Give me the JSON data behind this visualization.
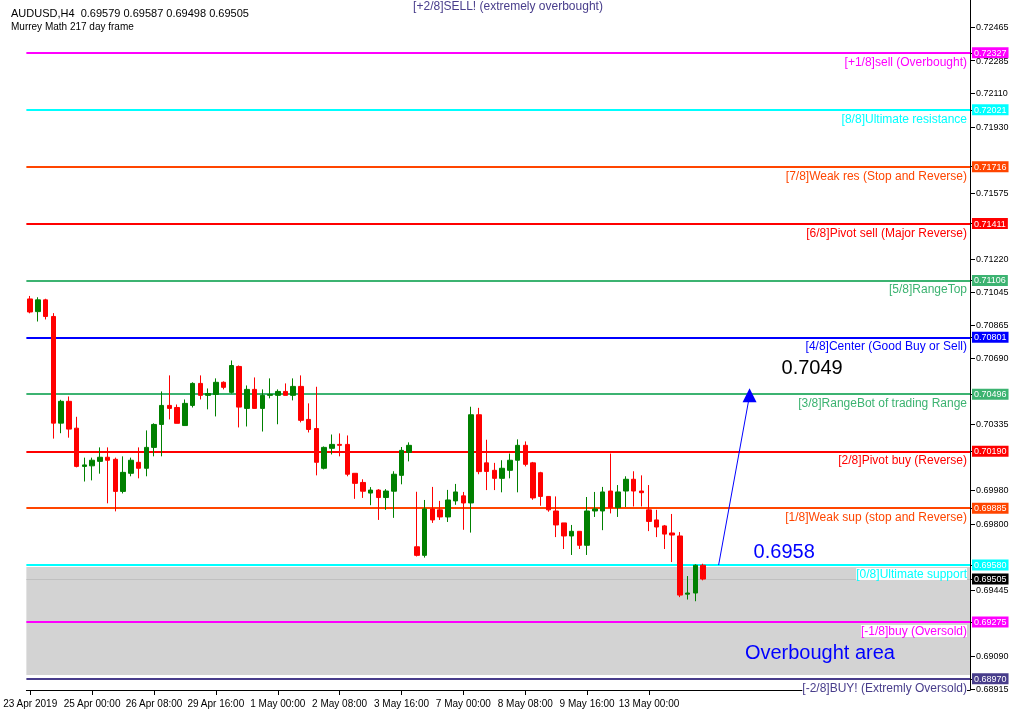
{
  "chart_data": {
    "type": "candlestick",
    "title": "AUDUSD,H4  0.69579 0.69587 0.69498 0.69505",
    "subtitle": "Murrey Math 217 day frame",
    "categories": [
      "23 Apr 2019",
      null,
      null,
      null,
      null,
      null,
      null,
      null,
      "25 Apr 00:00",
      null,
      null,
      null,
      null,
      null,
      null,
      null,
      "26 Apr 08:00",
      null,
      null,
      null,
      null,
      null,
      null,
      null,
      "29 Apr 16:00",
      null,
      null,
      null,
      null,
      null,
      null,
      null,
      "1 May 00:00",
      null,
      null,
      null,
      null,
      null,
      null,
      null,
      "2 May 08:00",
      null,
      null,
      null,
      null,
      null,
      null,
      null,
      "3 May 16:00",
      null,
      null,
      null,
      null,
      null,
      null,
      null,
      "7 May 00:00",
      null,
      null,
      null,
      null,
      null,
      null,
      null,
      "8 May 08:00",
      null,
      null,
      null,
      null,
      null,
      null,
      null,
      "9 May 16:00",
      null,
      null,
      null,
      null,
      null,
      null,
      null,
      "13 May 00:00",
      null,
      null,
      null,
      null,
      null,
      null,
      null,
      null,
      null,
      null,
      null,
      null,
      null,
      null,
      null,
      null,
      null,
      null,
      null,
      null,
      null,
      null,
      null,
      null,
      null,
      null,
      null,
      null,
      null,
      null,
      null,
      null,
      null,
      null,
      null,
      null,
      null,
      null,
      null,
      null,
      null
    ],
    "colors": [
      "#ff0000",
      "#008000",
      "#ff0000",
      "#ff0000",
      "#008000",
      "#ff0000",
      "#ff0000",
      "#008000",
      "#008000",
      "#008000",
      "#ff0000",
      "#ff0000",
      "#008000",
      "#008000",
      "#ff0000",
      "#008000",
      "#008000",
      "#008000",
      "#ff0000",
      "#ff0000",
      "#008000",
      "#008000",
      "#ff0000",
      "#008000",
      "#008000",
      "#ff0000",
      "#008000",
      "#ff0000",
      "#008000",
      "#ff0000",
      "#008000",
      "#008000",
      "#008000",
      "#ff0000",
      "#008000",
      "#ff0000",
      "#ff0000",
      "#ff0000",
      "#008000",
      "#008000",
      "#ff0000",
      "#ff0000",
      "#ff0000",
      "#ff0000",
      "#008000",
      "#ff0000",
      "#008000",
      "#008000",
      "#008000",
      "#008000",
      "#ff0000",
      "#008000",
      "#ff0000",
      "#ff0000",
      "#008000",
      "#008000",
      "#ff0000",
      "#008000",
      "#ff0000",
      "#ff0000",
      "#ff0000",
      "#008000",
      "#008000",
      "#008000",
      "#ff0000",
      "#ff0000",
      "#ff0000",
      "#ff0000",
      "#ff0000",
      "#ff0000",
      "#008000",
      "#ff0000",
      "#008000",
      "#008000",
      "#008000",
      "#ff0000",
      "#008000",
      "#008000",
      "#ff0000",
      "#ff0000",
      "#ff0000",
      "#ff0000",
      "#ff0000",
      "#ff0000",
      "#ff0000",
      "#008000",
      "#008000",
      "#ff0000",
      null,
      null,
      null,
      null,
      null,
      null,
      null,
      null,
      null,
      null,
      null,
      null,
      null,
      null,
      null,
      null,
      null,
      null,
      null,
      null,
      null,
      null,
      null,
      null,
      null,
      null,
      null,
      null,
      null,
      null,
      null,
      null,
      null,
      null
    ],
    "ohlc": [
      [
        0.71007,
        0.71023,
        0.7093,
        0.70937
      ],
      [
        0.70939,
        0.71016,
        0.70886,
        0.71002
      ],
      [
        0.71002,
        0.71008,
        0.70897,
        0.70913
      ],
      [
        0.70913,
        0.70931,
        0.70258,
        0.70341
      ],
      [
        0.70341,
        0.70466,
        0.70287,
        0.70458
      ],
      [
        0.70458,
        0.70484,
        0.70263,
        0.70309
      ],
      [
        0.70314,
        0.70375,
        0.70104,
        0.70109
      ],
      [
        0.70109,
        0.70156,
        0.70028,
        0.70117
      ],
      [
        0.70112,
        0.70156,
        0.70034,
        0.70142
      ],
      [
        0.70136,
        0.70211,
        0.7007,
        0.70158
      ],
      [
        0.70158,
        0.70211,
        0.69911,
        0.70142
      ],
      [
        0.70147,
        0.70156,
        0.69868,
        0.69975
      ],
      [
        0.69975,
        0.70163,
        0.69964,
        0.70077
      ],
      [
        0.70072,
        0.70156,
        0.70056,
        0.70142
      ],
      [
        0.70131,
        0.70211,
        0.70045,
        0.70099
      ],
      [
        0.70099,
        0.70302,
        0.70056,
        0.70211
      ],
      [
        0.70211,
        0.7034,
        0.70163,
        0.70334
      ],
      [
        0.70334,
        0.70511,
        0.70163,
        0.70436
      ],
      [
        0.70436,
        0.70597,
        0.70361,
        0.7042
      ],
      [
        0.70425,
        0.70441,
        0.7034,
        0.7034
      ],
      [
        0.70328,
        0.70468,
        0.70328,
        0.70447
      ],
      [
        0.70436,
        0.7056,
        0.70425,
        0.70554
      ],
      [
        0.70554,
        0.70597,
        0.70468,
        0.7049
      ],
      [
        0.7049,
        0.70527,
        0.70415,
        0.705
      ],
      [
        0.70495,
        0.70581,
        0.70377,
        0.7056
      ],
      [
        0.7056,
        0.70565,
        0.70522,
        0.70533
      ],
      [
        0.70506,
        0.70677,
        0.705,
        0.7065
      ],
      [
        0.70645,
        0.7065,
        0.70318,
        0.70427
      ],
      [
        0.7042,
        0.70543,
        0.70323,
        0.70522
      ],
      [
        0.70522,
        0.70586,
        0.7042,
        0.7042
      ],
      [
        0.7042,
        0.70522,
        0.70296,
        0.7049
      ],
      [
        0.7049,
        0.70581,
        0.70474,
        0.70495
      ],
      [
        0.7049,
        0.70522,
        0.70335,
        0.70511
      ],
      [
        0.70511,
        0.70554,
        0.7049,
        0.7049
      ],
      [
        0.7049,
        0.70581,
        0.70463,
        0.70538
      ],
      [
        0.70538,
        0.70597,
        0.70345,
        0.70356
      ],
      [
        0.70361,
        0.70447,
        0.70291,
        0.70307
      ],
      [
        0.70312,
        0.70536,
        0.70061,
        0.70131
      ],
      [
        0.70099,
        0.70216,
        0.70093,
        0.70211
      ],
      [
        0.70206,
        0.7028,
        0.70173,
        0.70227
      ],
      [
        0.70227,
        0.70286,
        0.70163,
        0.70222
      ],
      [
        0.70227,
        0.70275,
        0.70056,
        0.70067
      ],
      [
        0.70072,
        0.70072,
        0.69935,
        0.70018
      ],
      [
        0.70023,
        0.7004,
        0.6994,
        0.69976
      ],
      [
        0.69966,
        0.69998,
        0.69901,
        0.69982
      ],
      [
        0.69982,
        0.69987,
        0.69822,
        0.69942
      ],
      [
        0.69942,
        0.69987,
        0.69876,
        0.69977
      ],
      [
        0.69976,
        0.70083,
        0.69833,
        0.70067
      ],
      [
        0.70061,
        0.70213,
        0.70013,
        0.70195
      ],
      [
        0.70184,
        0.70238,
        0.70136,
        0.70222
      ],
      [
        0.69678,
        0.69973,
        0.69626,
        0.69632
      ],
      [
        0.69632,
        0.69929,
        0.6962,
        0.69881
      ],
      [
        0.69881,
        0.69999,
        0.69806,
        0.69822
      ],
      [
        0.69876,
        0.69924,
        0.69822,
        0.69838
      ],
      [
        0.69838,
        0.69983,
        0.69811,
        0.69929
      ],
      [
        0.69924,
        0.70015,
        0.69903,
        0.69972
      ],
      [
        0.69951,
        0.69972,
        0.69769,
        0.69913
      ],
      [
        0.69913,
        0.70429,
        0.69754,
        0.70386
      ],
      [
        0.70386,
        0.70423,
        0.70067,
        0.70081
      ],
      [
        0.70128,
        0.70252,
        0.69982,
        0.70082
      ],
      [
        0.70088,
        0.70128,
        0.69982,
        0.70045
      ],
      [
        0.70045,
        0.70142,
        0.6997,
        0.70099
      ],
      [
        0.70088,
        0.70178,
        0.70045,
        0.70142
      ],
      [
        0.70142,
        0.70254,
        0.6997,
        0.70222
      ],
      [
        0.70222,
        0.70243,
        0.70109,
        0.7012
      ],
      [
        0.70128,
        0.70133,
        0.6993,
        0.6994
      ],
      [
        0.70075,
        0.7008,
        0.69898,
        0.69948
      ],
      [
        0.69948,
        0.6995,
        0.69866,
        0.69876
      ],
      [
        0.6987,
        0.69948,
        0.6973,
        0.69795
      ],
      [
        0.69806,
        0.69806,
        0.69666,
        0.69736
      ],
      [
        0.69736,
        0.69795,
        0.69634,
        0.69761
      ],
      [
        0.69761,
        0.69761,
        0.69666,
        0.69686
      ],
      [
        0.69686,
        0.69945,
        0.69634,
        0.6987
      ],
      [
        0.6987,
        0.69972,
        0.69838,
        0.69881
      ],
      [
        0.6987,
        0.69999,
        0.69767,
        0.69972
      ],
      [
        0.69977,
        0.70178,
        0.69857,
        0.69888
      ],
      [
        0.69888,
        0.70009,
        0.69838,
        0.69972
      ],
      [
        0.69977,
        0.70056,
        0.69891,
        0.7004
      ],
      [
        0.7004,
        0.70083,
        0.69894,
        0.69977
      ],
      [
        0.69977,
        0.70061,
        0.69894,
        0.69968
      ],
      [
        0.69876,
        0.70009,
        0.69762,
        0.69814
      ],
      [
        0.69822,
        0.69876,
        0.6973,
        0.69784
      ],
      [
        0.6979,
        0.69795,
        0.69666,
        0.69746
      ],
      [
        0.69752,
        0.69854,
        0.69596,
        0.69741
      ],
      [
        0.69736,
        0.69757,
        0.69408,
        0.69419
      ],
      [
        0.69424,
        0.69521,
        0.69395,
        0.6943
      ],
      [
        0.6943,
        0.69584,
        0.69386,
        0.69579
      ],
      [
        0.69579,
        0.69587,
        0.69498,
        0.69505
      ],
      null,
      null,
      null,
      null,
      null,
      null,
      null,
      null,
      null,
      null,
      null,
      null,
      null,
      null,
      null,
      null,
      null,
      null,
      null,
      null,
      null,
      null,
      null,
      null,
      null,
      null,
      null,
      null,
      null,
      null,
      null,
      null,
      null,
      null
    ],
    "series": [
      {
        "type": "line",
        "color": "#0000ff",
        "values": [
          null,
          null,
          null,
          null,
          null,
          null,
          null,
          null,
          null,
          null,
          null,
          null,
          null,
          null,
          null,
          null,
          null,
          null,
          null,
          null,
          null,
          null,
          null,
          null,
          null,
          null,
          null,
          null,
          null,
          null,
          null,
          null,
          null,
          null,
          null,
          null,
          null,
          null,
          null,
          null,
          null,
          null,
          null,
          null,
          null,
          null,
          null,
          null,
          null,
          null,
          null,
          null,
          null,
          null,
          null,
          null,
          null,
          null,
          null,
          null,
          null,
          null,
          null,
          null,
          null,
          null,
          null,
          null,
          null,
          null,
          null,
          null,
          null,
          null,
          null,
          null,
          null,
          null,
          null,
          null,
          null,
          null,
          null,
          null,
          null,
          null,
          null,
          null,
          null,
          0.6958,
          null,
          null,
          null,
          0.7049,
          null,
          null,
          null,
          null,
          null,
          null,
          null,
          null,
          null,
          null,
          null,
          null,
          null,
          null,
          null,
          null,
          null,
          null,
          null,
          null,
          null,
          null,
          null,
          null,
          null,
          null,
          null,
          null
        ],
        "value_labels": [
          null,
          null,
          null,
          null,
          null,
          null,
          null,
          null,
          null,
          null,
          null,
          null,
          null,
          null,
          null,
          null,
          null,
          null,
          null,
          null,
          null,
          null,
          null,
          null,
          null,
          null,
          null,
          null,
          null,
          null,
          null,
          null,
          null,
          null,
          null,
          null,
          null,
          null,
          null,
          null,
          null,
          null,
          null,
          null,
          null,
          null,
          null,
          null,
          null,
          null,
          null,
          null,
          null,
          null,
          null,
          null,
          null,
          null,
          null,
          null,
          null,
          null,
          null,
          null,
          null,
          null,
          null,
          null,
          null,
          null,
          null,
          null,
          null,
          null,
          null,
          null,
          null,
          null,
          null,
          null,
          null,
          null,
          null,
          null,
          null,
          null,
          null,
          null,
          null,
          "0.6958",
          null,
          null,
          null,
          "0.7049",
          null,
          null,
          null,
          null,
          null,
          null,
          null,
          null,
          null,
          null,
          null,
          null,
          null,
          null,
          null,
          null,
          null,
          null,
          null,
          null,
          null,
          null,
          null,
          null,
          null,
          null,
          null,
          null
        ]
      }
    ],
    "ylim": [
      0.6891,
      0.7261
    ],
    "yticks": [
      0.72465,
      0.72327,
      0.72285,
      0.72021,
      0.71716,
      0.71411,
      0.71106,
      0.70801,
      0.70496,
      {
        "value": 0.7019,
        "label": "0.70190"
      },
      0.69885,
      {
        "value": 0.6958,
        "label": "0.69580"
      },
      0.69505,
      0.69275,
      {
        "value": 0.6897,
        "label": "0.68970"
      },
      {
        "value": 0.7211,
        "label": "0.72110"
      },
      {
        "value": 0.7193,
        "label": "0.71930"
      },
      0.71575,
      {
        "value": 0.7122,
        "label": "0.71220"
      },
      0.71045,
      0.70865,
      {
        "value": 0.7069,
        "label": "0.70690"
      },
      0.70335,
      {
        "value": 0.6998,
        "label": "0.69980"
      },
      {
        "value": 0.698,
        "label": "0.69800"
      },
      0.69445,
      {
        "value": 0.6909,
        "label": "0.69090"
      },
      0.68915
    ],
    "ref_lines": [
      {
        "axis": "y",
        "value": 0.72327,
        "label": "[+1/8]sell (Overbought)",
        "color": "#ff00ff"
      },
      {
        "axis": "y",
        "value": 0.72021,
        "label": "[8/8]Ultimate resistance",
        "color": "#00ffff"
      },
      {
        "axis": "y",
        "value": 0.71716,
        "label": "[7/8]Weak res (Stop and Reverse)",
        "color": "#ff4500"
      },
      {
        "axis": "y",
        "value": 0.71411,
        "label": "[6/8]Pivot sell (Major Reverse)",
        "color": "#ff0000"
      },
      {
        "axis": "y",
        "value": 0.71106,
        "label": "[5/8]RangeTop",
        "color": "#3cb371"
      },
      {
        "axis": "y",
        "value": 0.70801,
        "label": "[4/8]Center (Good Buy or Sell)",
        "color": "#0000ff"
      },
      {
        "axis": "y",
        "value": 0.70496,
        "label": "[3/8]RangeBot of trading Range",
        "color": "#3cb371"
      },
      {
        "axis": "y",
        "value": 0.7019,
        "label": "[2/8]Pivot buy (Reverse)",
        "color": "#ff0000"
      },
      {
        "axis": "y",
        "value": 0.69885,
        "label": "[1/8]Weak sup (stop and Reverse)",
        "color": "#ff4500"
      },
      {
        "axis": "y",
        "value": 0.6958,
        "label": "[0/8]Ultimate support",
        "color": "#00ffff"
      },
      {
        "axis": "y",
        "value": 0.69505,
        "color": "#c0c0c0"
      },
      {
        "axis": "y",
        "value": 0.69275,
        "label": "[-1/8]buy (Oversold)",
        "color": "#ff00ff"
      },
      {
        "axis": "y",
        "value": 0.6897,
        "label": "[-2/8]BUY! (Extremly Oversold)",
        "color": "#483d8b"
      }
    ],
    "bands": [
      {
        "axis": "y",
        "from": 0.6899,
        "to": 0.6957,
        "label": "Overbought area",
        "color": "#d3d3d3"
      }
    ],
    "annotations": [
      "[+2/8]SELL! (extremely overbought)"
    ],
    "grid": false
  }
}
